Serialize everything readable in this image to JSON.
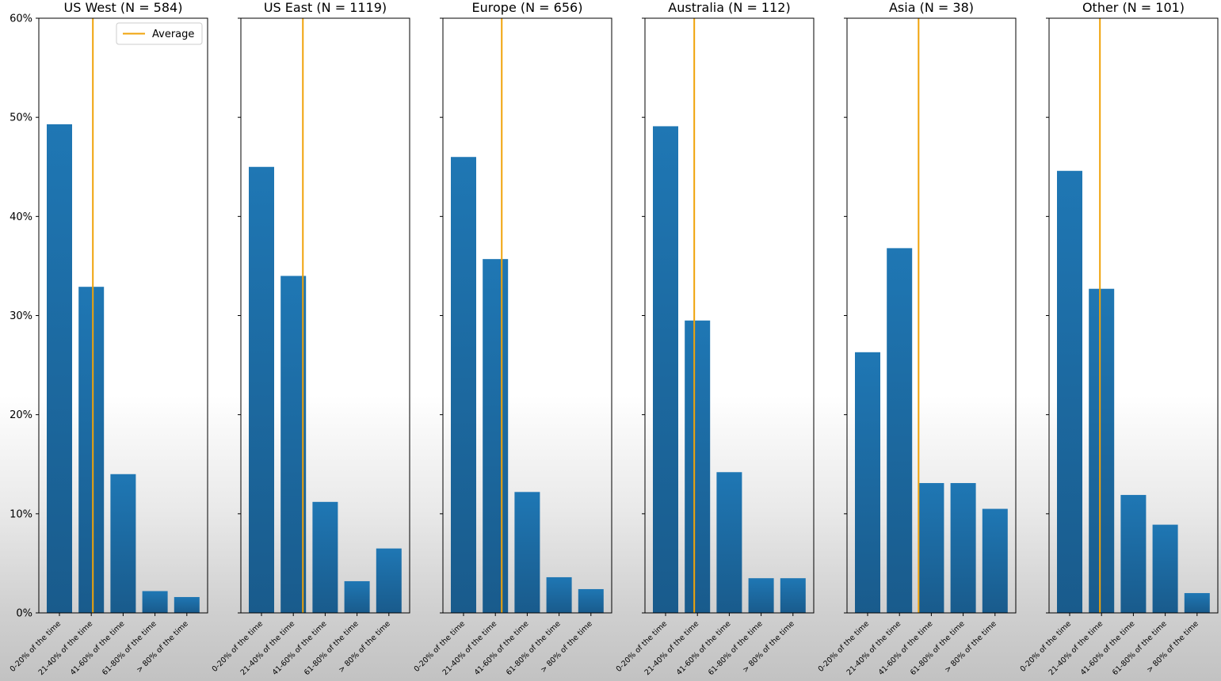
{
  "chart_data": {
    "type": "bar",
    "categories": [
      "0-20% of the time",
      "21-40% of the time",
      "41-60% of the time",
      "61-80% of the time",
      "> 80% of the time"
    ],
    "ylim": [
      0,
      60
    ],
    "yticks": [
      0,
      10,
      20,
      30,
      40,
      50,
      60
    ],
    "ytick_labels": [
      "0%",
      "10%",
      "20%",
      "30%",
      "40%",
      "50%",
      "60%"
    ],
    "grid": false,
    "bar_color": "#1f77b4",
    "average_color": "#f0a30a",
    "legend": {
      "label": "Average",
      "placement": "top-right of first panel"
    },
    "panels": [
      {
        "title": "US West (N = 584)",
        "values": [
          49.3,
          32.9,
          14.0,
          2.2,
          1.6
        ],
        "average": 1.05
      },
      {
        "title": "US East (N = 1119)",
        "values": [
          45.0,
          34.0,
          11.2,
          3.2,
          6.5
        ],
        "average": 1.3
      },
      {
        "title": "Europe (N = 656)",
        "values": [
          46.0,
          35.7,
          12.2,
          3.6,
          2.4
        ],
        "average": 1.2
      },
      {
        "title": "Australia (N = 112)",
        "values": [
          49.1,
          29.5,
          14.2,
          3.5,
          3.5
        ],
        "average": 0.9
      },
      {
        "title": "Asia (N = 38)",
        "values": [
          26.3,
          36.8,
          13.1,
          13.1,
          10.5
        ],
        "average": 1.6
      },
      {
        "title": "Other (N = 101)",
        "values": [
          44.6,
          32.7,
          11.9,
          8.9,
          2.0
        ],
        "average": 0.95
      }
    ]
  }
}
